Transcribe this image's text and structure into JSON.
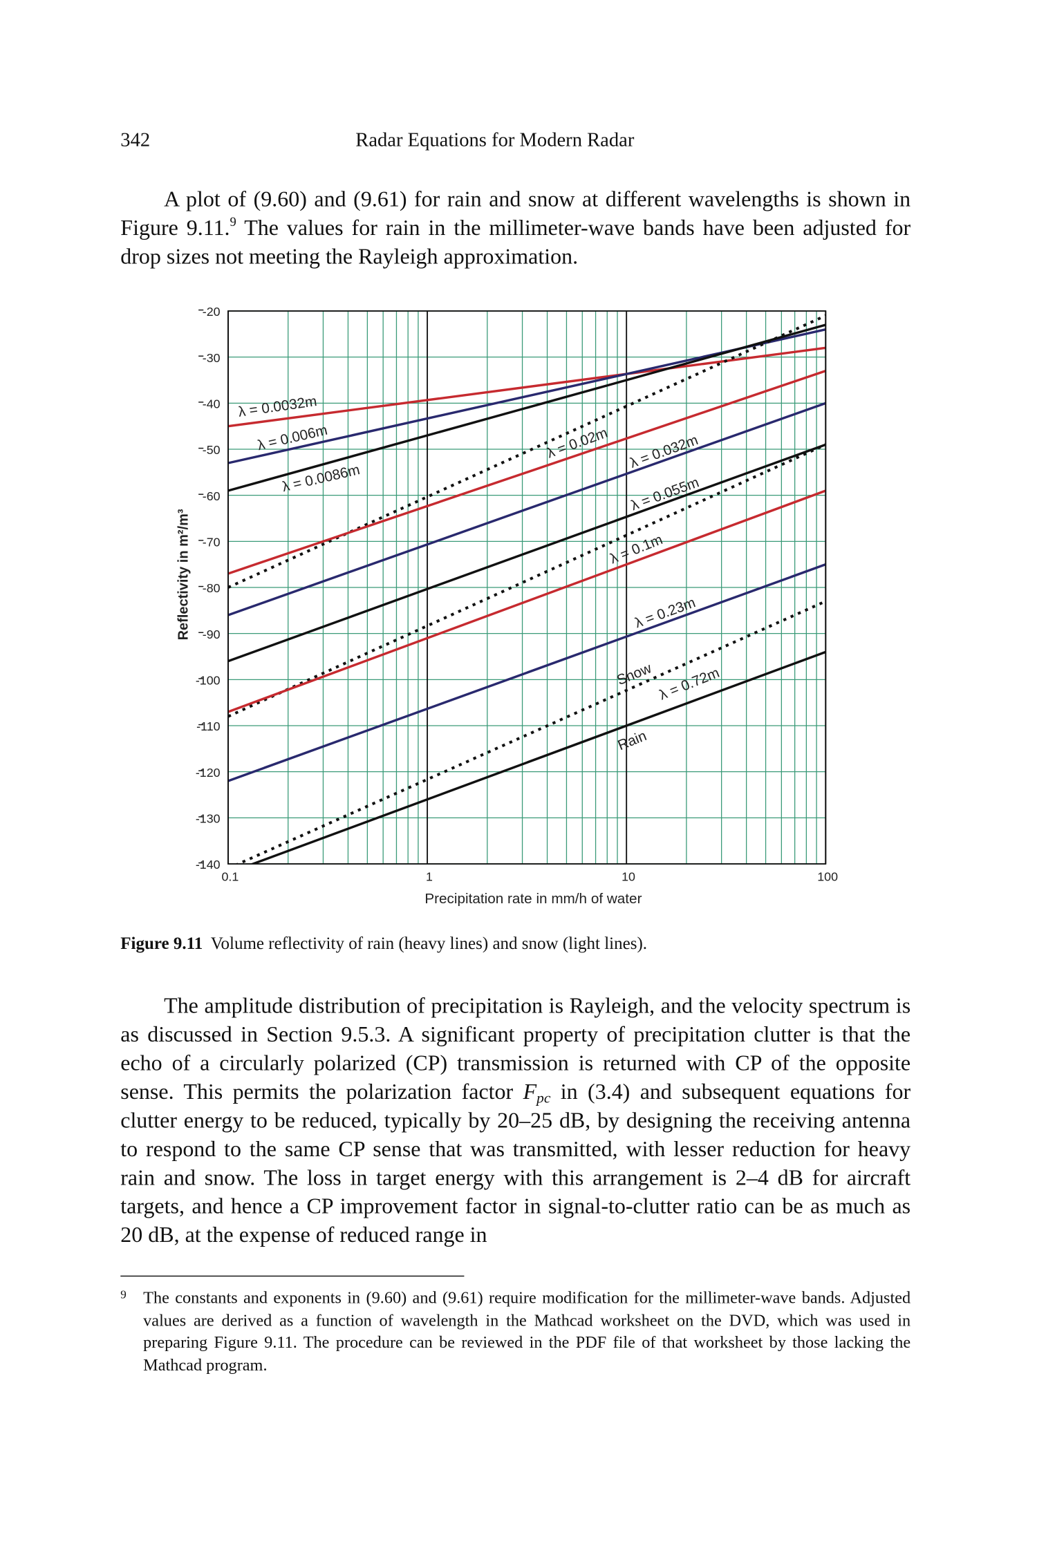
{
  "header": {
    "page_number": "342",
    "running_title": "Radar Equations for Modern Radar"
  },
  "paragraphs": [
    {
      "parts": [
        "A plot of (9.60) and (9.61) for rain and snow at different wavelengths is shown in Figure 9.11.",
        "9",
        " The values for rain in the millimeter-wave bands have been adjusted for drop sizes not meeting the Rayleigh approximation."
      ]
    },
    {
      "parts": [
        "The amplitude distribution of precipitation is Rayleigh, and the velocity spectrum is as discussed in Section 9.5.3. A significant property of precipitation clutter is that the echo of a circularly polarized (CP) transmission is returned with CP of the opposite sense. This permits the polarization factor ",
        "F",
        "pc",
        " in (3.4) and subsequent equations for clutter energy to be reduced, typically by 20–25 dB, by designing the receiving antenna to respond to the same CP sense that was transmitted, with lesser reduction for heavy rain and snow. The loss in target energy with this arrangement is 2–4 dB for aircraft targets, and hence a CP improvement factor in signal-to-clutter ratio can be as much as 20 dB, at the expense of reduced range in"
      ]
    }
  ],
  "figure": {
    "label": "Figure 9.11",
    "caption": "Volume reflectivity of rain (heavy lines) and snow (light lines)."
  },
  "chart_data": {
    "type": "line",
    "x_label": "Precipitation rate in mm/h of water",
    "y_label": "Reflectivity in m²/m³",
    "x_scale": "log",
    "grid": true,
    "xlim": [
      0.1,
      100
    ],
    "xticks": [
      0.1,
      1,
      10,
      100
    ],
    "ylim": [
      -140,
      -20
    ],
    "yticks": [
      -20,
      -30,
      -40,
      -50,
      -60,
      -70,
      -80,
      -90,
      -100,
      -110,
      -120,
      -130,
      -140
    ],
    "x": [
      0.1,
      100
    ],
    "series": [
      {
        "color": "#c62a2f",
        "dotted": false,
        "values": [
          -45,
          -28
        ]
      },
      {
        "color": "#29296e",
        "dotted": false,
        "values": [
          -53,
          -24
        ]
      },
      {
        "color": "#111111",
        "dotted": false,
        "values": [
          -59,
          -23
        ]
      },
      {
        "color": "#111111",
        "dotted": true,
        "values": [
          -80,
          -21
        ]
      },
      {
        "color": "#c62a2f",
        "dotted": false,
        "values": [
          -77,
          -33
        ]
      },
      {
        "color": "#29296e",
        "dotted": false,
        "values": [
          -86,
          -40
        ]
      },
      {
        "color": "#111111",
        "dotted": false,
        "values": [
          -96,
          -49
        ]
      },
      {
        "color": "#111111",
        "dotted": true,
        "values": [
          -108,
          -49
        ]
      },
      {
        "color": "#c62a2f",
        "dotted": false,
        "values": [
          -107,
          -59
        ]
      },
      {
        "color": "#29296e",
        "dotted": false,
        "values": [
          -122,
          -75
        ]
      },
      {
        "color": "#111111",
        "dotted": true,
        "values": [
          -141,
          -83
        ]
      },
      {
        "color": "#111111",
        "dotted": false,
        "values": [
          -142,
          -94
        ]
      }
    ],
    "annotations": [
      "λ = 0.0032m",
      "λ = 0.006m",
      "λ = 0.0086m",
      "λ = 0.02m",
      "λ = 0.032m",
      "λ = 0.055m",
      "λ = 0.1m",
      "λ = 0.23m",
      "Snow",
      "λ = 0.72m",
      "Rain"
    ]
  },
  "footnote": {
    "marker": "9",
    "text": "The constants and exponents in (9.60) and (9.61) require modification for the millimeter-wave bands. Adjusted values are derived as a function of wavelength in the Mathcad worksheet on the DVD, which was used in preparing Figure 9.11. The procedure can be reviewed in the PDF file of that worksheet by those lacking the Mathcad program."
  }
}
